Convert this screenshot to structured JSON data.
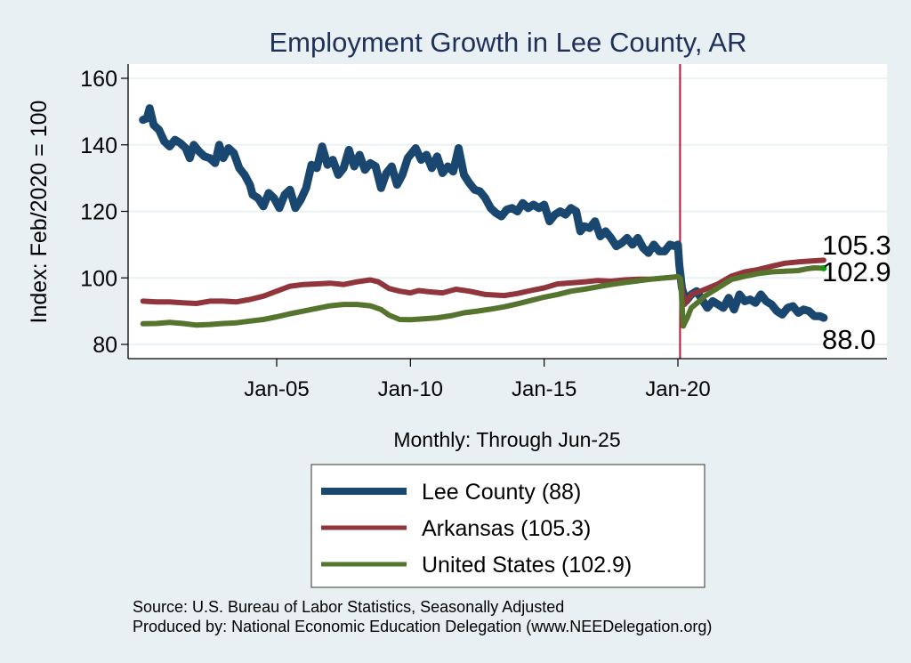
{
  "chart_data": {
    "type": "line",
    "title": "Employment Growth in Lee  County, AR",
    "ylabel": "Index: Feb/2020 = 100",
    "xlabel": "Monthly: Through Jun-25",
    "ylim": [
      78,
      165
    ],
    "xlim": [
      1999.4,
      2027.7
    ],
    "yticks": [
      80,
      100,
      120,
      140,
      160
    ],
    "xticks": [
      {
        "label": "Jan-05",
        "x": 2005.0
      },
      {
        "label": "Jan-10",
        "x": 2010.0
      },
      {
        "label": "Jan-15",
        "x": 2015.0
      },
      {
        "label": "Jan-20",
        "x": 2020.0
      }
    ],
    "grid": true,
    "reference_line": {
      "x": 2020.08,
      "color": "#c8102e"
    },
    "legend_position": "bottom",
    "series": [
      {
        "name": "Lee  County (88)",
        "color": "#1a476f",
        "end_label": "88.0",
        "points": [
          [
            2000.0,
            147.5
          ],
          [
            2000.15,
            148
          ],
          [
            2000.25,
            151
          ],
          [
            2000.4,
            146
          ],
          [
            2000.6,
            144.5
          ],
          [
            2000.8,
            141
          ],
          [
            2001.0,
            139.5
          ],
          [
            2001.2,
            141.5
          ],
          [
            2001.4,
            140.5
          ],
          [
            2001.6,
            139
          ],
          [
            2001.75,
            136
          ],
          [
            2001.9,
            140
          ],
          [
            2002.1,
            138
          ],
          [
            2002.3,
            136.5
          ],
          [
            2002.5,
            136
          ],
          [
            2002.7,
            134.5
          ],
          [
            2002.85,
            140
          ],
          [
            2003.0,
            136
          ],
          [
            2003.2,
            139
          ],
          [
            2003.4,
            137.5
          ],
          [
            2003.6,
            133
          ],
          [
            2003.8,
            131
          ],
          [
            2004.0,
            128
          ],
          [
            2004.1,
            125
          ],
          [
            2004.3,
            124
          ],
          [
            2004.5,
            121.5
          ],
          [
            2004.7,
            125.5
          ],
          [
            2004.9,
            124
          ],
          [
            2005.1,
            121
          ],
          [
            2005.3,
            125
          ],
          [
            2005.5,
            126.5
          ],
          [
            2005.7,
            121
          ],
          [
            2005.9,
            123.5
          ],
          [
            2006.1,
            127
          ],
          [
            2006.3,
            134
          ],
          [
            2006.5,
            133
          ],
          [
            2006.7,
            139.5
          ],
          [
            2006.9,
            134
          ],
          [
            2007.1,
            135.5
          ],
          [
            2007.3,
            131
          ],
          [
            2007.5,
            133
          ],
          [
            2007.7,
            138.5
          ],
          [
            2007.9,
            133.5
          ],
          [
            2008.1,
            137
          ],
          [
            2008.3,
            132.5
          ],
          [
            2008.5,
            134.5
          ],
          [
            2008.7,
            133.5
          ],
          [
            2008.9,
            127
          ],
          [
            2009.1,
            131.5
          ],
          [
            2009.3,
            133.5
          ],
          [
            2009.5,
            128
          ],
          [
            2009.7,
            131
          ],
          [
            2009.9,
            136
          ],
          [
            2010.1,
            138
          ],
          [
            2010.2,
            139
          ],
          [
            2010.4,
            135.5
          ],
          [
            2010.6,
            137
          ],
          [
            2010.8,
            133
          ],
          [
            2011.0,
            136.5
          ],
          [
            2011.2,
            131.5
          ],
          [
            2011.4,
            133.5
          ],
          [
            2011.6,
            132
          ],
          [
            2011.8,
            139
          ],
          [
            2012.0,
            131
          ],
          [
            2012.2,
            128.5
          ],
          [
            2012.4,
            126.5
          ],
          [
            2012.6,
            126
          ],
          [
            2012.8,
            124
          ],
          [
            2013.0,
            121
          ],
          [
            2013.2,
            119.5
          ],
          [
            2013.4,
            118.5
          ],
          [
            2013.6,
            120.5
          ],
          [
            2013.8,
            121
          ],
          [
            2014.0,
            120
          ],
          [
            2014.2,
            122.5
          ],
          [
            2014.4,
            121
          ],
          [
            2014.6,
            122
          ],
          [
            2014.8,
            121
          ],
          [
            2015.0,
            122
          ],
          [
            2015.2,
            117
          ],
          [
            2015.4,
            119
          ],
          [
            2015.6,
            120
          ],
          [
            2015.8,
            119
          ],
          [
            2016.0,
            121
          ],
          [
            2016.2,
            120
          ],
          [
            2016.35,
            114
          ],
          [
            2016.5,
            115.5
          ],
          [
            2016.7,
            115
          ],
          [
            2016.9,
            117
          ],
          [
            2017.1,
            112.5
          ],
          [
            2017.3,
            114
          ],
          [
            2017.5,
            112
          ],
          [
            2017.7,
            109.5
          ],
          [
            2017.9,
            110.5
          ],
          [
            2018.1,
            112
          ],
          [
            2018.3,
            110
          ],
          [
            2018.5,
            112
          ],
          [
            2018.7,
            109
          ],
          [
            2018.9,
            107.5
          ],
          [
            2019.1,
            110
          ],
          [
            2019.3,
            108
          ],
          [
            2019.5,
            108
          ],
          [
            2019.7,
            110
          ],
          [
            2019.9,
            109.5
          ],
          [
            2020.0,
            110
          ],
          [
            2020.05,
            104
          ],
          [
            2020.15,
            97
          ],
          [
            2020.3,
            93
          ],
          [
            2020.5,
            95
          ],
          [
            2020.7,
            96
          ],
          [
            2020.9,
            93.5
          ],
          [
            2021.1,
            91
          ],
          [
            2021.3,
            93
          ],
          [
            2021.5,
            92
          ],
          [
            2021.7,
            91
          ],
          [
            2021.9,
            94
          ],
          [
            2022.1,
            90.5
          ],
          [
            2022.3,
            95
          ],
          [
            2022.5,
            93
          ],
          [
            2022.7,
            93.5
          ],
          [
            2022.9,
            92.5
          ],
          [
            2023.1,
            95
          ],
          [
            2023.3,
            93
          ],
          [
            2023.5,
            92
          ],
          [
            2023.7,
            90
          ],
          [
            2023.9,
            89
          ],
          [
            2024.1,
            91
          ],
          [
            2024.3,
            91.5
          ],
          [
            2024.5,
            89.5
          ],
          [
            2024.7,
            90.5
          ],
          [
            2024.9,
            90
          ],
          [
            2025.1,
            88.5
          ],
          [
            2025.3,
            88.5
          ],
          [
            2025.45,
            88
          ]
        ]
      },
      {
        "name": "Arkansas (105.3)",
        "color": "#90353b",
        "end_label": "105.3",
        "points": [
          [
            2000.0,
            93
          ],
          [
            2000.5,
            92.8
          ],
          [
            2001.0,
            92.8
          ],
          [
            2001.5,
            92.5
          ],
          [
            2002.0,
            92.3
          ],
          [
            2002.5,
            93
          ],
          [
            2003.0,
            93
          ],
          [
            2003.5,
            92.8
          ],
          [
            2004.0,
            93.5
          ],
          [
            2004.5,
            94.5
          ],
          [
            2005.0,
            96
          ],
          [
            2005.5,
            97.5
          ],
          [
            2006.0,
            98
          ],
          [
            2006.5,
            98.2
          ],
          [
            2007.0,
            98.4
          ],
          [
            2007.5,
            98
          ],
          [
            2008.0,
            98.8
          ],
          [
            2008.5,
            99.4
          ],
          [
            2008.8,
            98.8
          ],
          [
            2009.2,
            96.8
          ],
          [
            2009.6,
            96
          ],
          [
            2010.0,
            95.5
          ],
          [
            2010.3,
            96.2
          ],
          [
            2010.7,
            95.8
          ],
          [
            2011.2,
            95.5
          ],
          [
            2011.7,
            96.6
          ],
          [
            2012.2,
            96
          ],
          [
            2012.8,
            95
          ],
          [
            2013.5,
            94.7
          ],
          [
            2014.0,
            95.3
          ],
          [
            2014.5,
            96.2
          ],
          [
            2015.0,
            97
          ],
          [
            2015.5,
            98.2
          ],
          [
            2016.0,
            98.5
          ],
          [
            2016.5,
            98.8
          ],
          [
            2017.0,
            99.2
          ],
          [
            2017.5,
            99
          ],
          [
            2018.0,
            99.4
          ],
          [
            2018.5,
            99.6
          ],
          [
            2019.0,
            99.6
          ],
          [
            2019.5,
            100
          ],
          [
            2020.0,
            100.3
          ],
          [
            2020.1,
            99.5
          ],
          [
            2020.25,
            92
          ],
          [
            2020.5,
            95
          ],
          [
            2021.0,
            96.5
          ],
          [
            2021.5,
            98.2
          ],
          [
            2022.0,
            100.5
          ],
          [
            2022.5,
            101.8
          ],
          [
            2023.0,
            102.5
          ],
          [
            2023.5,
            103.5
          ],
          [
            2024.0,
            104.4
          ],
          [
            2024.5,
            104.8
          ],
          [
            2025.0,
            105.1
          ],
          [
            2025.45,
            105.3
          ]
        ]
      },
      {
        "name": "United States (102.9)",
        "color": "#55752f",
        "end_label": "102.9",
        "points": [
          [
            2000.0,
            86.2
          ],
          [
            2000.5,
            86.3
          ],
          [
            2001.0,
            86.6
          ],
          [
            2001.5,
            86.3
          ],
          [
            2002.0,
            85.8
          ],
          [
            2002.5,
            86
          ],
          [
            2003.0,
            86.3
          ],
          [
            2003.5,
            86.5
          ],
          [
            2004.0,
            87
          ],
          [
            2004.5,
            87.5
          ],
          [
            2005.0,
            88.3
          ],
          [
            2005.5,
            89.2
          ],
          [
            2006.0,
            90
          ],
          [
            2006.5,
            90.8
          ],
          [
            2007.0,
            91.6
          ],
          [
            2007.5,
            92
          ],
          [
            2008.0,
            92
          ],
          [
            2008.5,
            91.6
          ],
          [
            2008.9,
            90.5
          ],
          [
            2009.2,
            88.8
          ],
          [
            2009.6,
            87.5
          ],
          [
            2010.0,
            87.4
          ],
          [
            2010.5,
            87.7
          ],
          [
            2011.0,
            88
          ],
          [
            2011.5,
            88.6
          ],
          [
            2012.0,
            89.5
          ],
          [
            2012.5,
            90
          ],
          [
            2013.0,
            90.6
          ],
          [
            2013.5,
            91.3
          ],
          [
            2014.0,
            92.2
          ],
          [
            2014.5,
            93.2
          ],
          [
            2015.0,
            94.2
          ],
          [
            2015.5,
            95
          ],
          [
            2016.0,
            96
          ],
          [
            2016.5,
            96.6
          ],
          [
            2017.0,
            97.3
          ],
          [
            2017.5,
            98
          ],
          [
            2018.0,
            98.6
          ],
          [
            2018.5,
            99.1
          ],
          [
            2019.0,
            99.6
          ],
          [
            2019.5,
            100
          ],
          [
            2020.0,
            100.4
          ],
          [
            2020.1,
            99.8
          ],
          [
            2020.2,
            85.5
          ],
          [
            2020.35,
            88
          ],
          [
            2020.5,
            91
          ],
          [
            2020.8,
            93
          ],
          [
            2021.0,
            94.5
          ],
          [
            2021.5,
            97
          ],
          [
            2022.0,
            99.5
          ],
          [
            2022.5,
            100.5
          ],
          [
            2023.0,
            101.3
          ],
          [
            2023.5,
            101.8
          ],
          [
            2024.0,
            102
          ],
          [
            2024.5,
            102.2
          ],
          [
            2024.8,
            102.7
          ],
          [
            2025.1,
            103
          ],
          [
            2025.45,
            102.9
          ]
        ]
      }
    ],
    "notes": [
      "Source: U.S. Bureau of Labor Statistics, Seasonally Adjusted",
      "Produced by: National Economic Education Delegation (www.NEEDelegation.org)"
    ]
  }
}
